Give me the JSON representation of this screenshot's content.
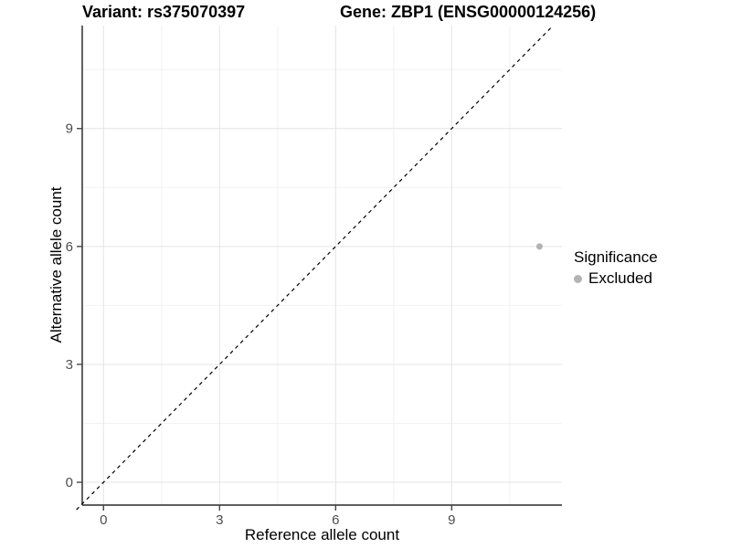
{
  "chart_data": {
    "type": "scatter",
    "titles": {
      "variant": "Variant: rs375070397",
      "gene": "Gene: ZBP1 (ENSG00000124256)"
    },
    "xlabel": "Reference allele count",
    "ylabel": "Alternative allele count",
    "xlim": [
      -0.55,
      11.85
    ],
    "ylim": [
      -0.58,
      11.62
    ],
    "xticks": [
      0,
      3,
      6,
      9
    ],
    "yticks": [
      0,
      3,
      6,
      9
    ],
    "minor_xticks": [
      1.5,
      4.5,
      7.5,
      10.5
    ],
    "minor_yticks": [
      1.5,
      4.5,
      7.5,
      10.5
    ],
    "grid": true,
    "identity_line": {
      "style": "dashed",
      "color": "#000000",
      "from": -0.7,
      "to": 11.6
    },
    "points": [
      {
        "x": 11,
        "y": 6,
        "x_plot": 11.27,
        "y_plot": 6,
        "significance": "Excluded",
        "color": "#b3b3b3",
        "radius": 3.5
      }
    ],
    "legend": {
      "title": "Significance",
      "position": "right",
      "items": [
        {
          "label": "Excluded",
          "color": "#b3b3b3"
        }
      ]
    },
    "colors": {
      "grid_major": "#e4e4e4",
      "grid_minor": "#f2f2f2",
      "axis_line": "#474747",
      "tick_text": "#4d4d4d",
      "title_text": "#000000"
    }
  }
}
